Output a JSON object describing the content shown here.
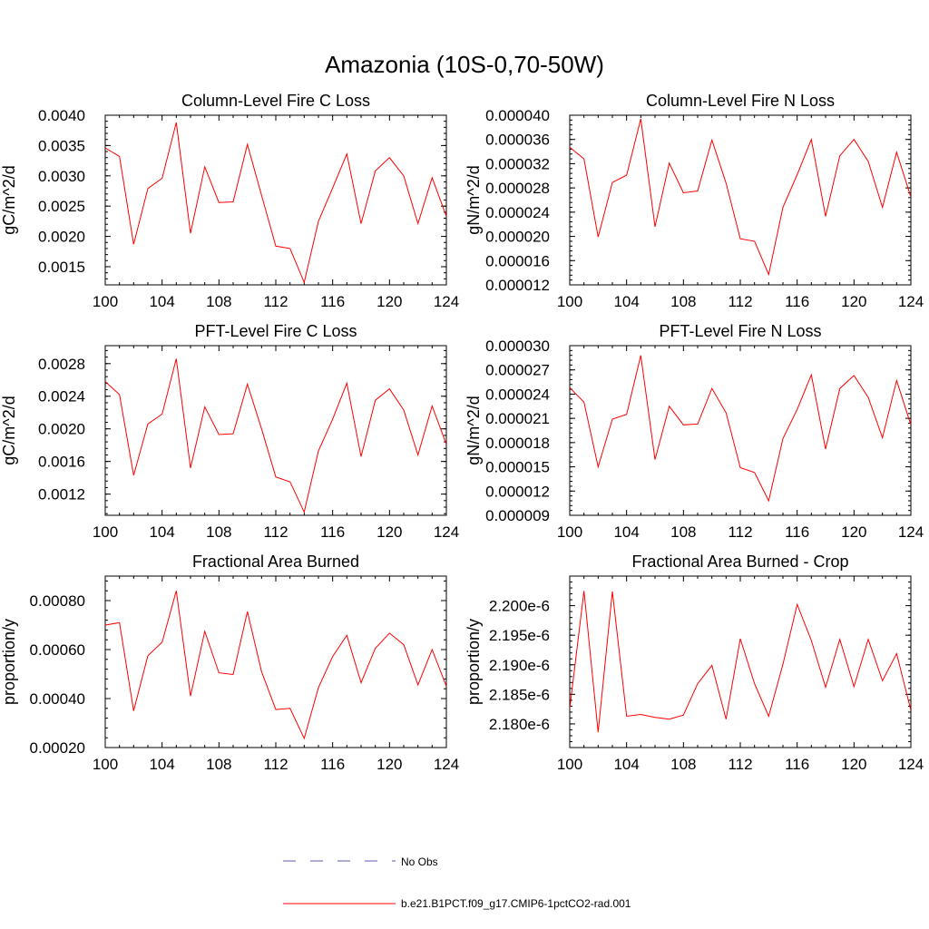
{
  "page": {
    "title": "Amazonia (10S-0,70-50W)"
  },
  "legend": {
    "obs_label": "No Obs",
    "obs_color": "#5a5aa8",
    "model_label": "b.e21.B1PCT.f09_g17.CMIP6-1pctCO2-rad.001",
    "model_color": "#ff0000"
  },
  "chart_data": [
    {
      "type": "line",
      "title": "Column-Level Fire C Loss",
      "ylabel": "gC/m^2/d",
      "xlim": [
        100,
        124
      ],
      "ylim": [
        0.0012,
        0.004
      ],
      "x_ticks": [
        "100",
        "104",
        "108",
        "112",
        "116",
        "120",
        "124"
      ],
      "y_ticks": [
        {
          "value": 0.0015,
          "label": "0.0015"
        },
        {
          "value": 0.002,
          "label": "0.0020"
        },
        {
          "value": 0.0025,
          "label": "0.0025"
        },
        {
          "value": 0.003,
          "label": "0.0030"
        },
        {
          "value": 0.0035,
          "label": "0.0035"
        },
        {
          "value": 0.004,
          "label": "0.0040"
        }
      ],
      "series": [
        {
          "color": "#ff0000",
          "x": [
            100,
            101,
            102,
            103,
            104,
            105,
            106,
            107,
            108,
            109,
            110,
            111,
            112,
            113,
            114,
            115,
            116,
            117,
            118,
            119,
            120,
            121,
            122,
            123,
            124
          ],
          "y": [
            0.00346,
            0.00332,
            0.00187,
            0.00279,
            0.00296,
            0.00388,
            0.00205,
            0.00315,
            0.00256,
            0.00257,
            0.00352,
            0.00268,
            0.00184,
            0.0018,
            0.00124,
            0.00225,
            0.0028,
            0.00336,
            0.00221,
            0.00308,
            0.0033,
            0.003,
            0.00221,
            0.00297,
            0.00233
          ]
        }
      ]
    },
    {
      "type": "line",
      "title": "Column-Level Fire N Loss",
      "ylabel": "gN/m^2/d",
      "xlim": [
        100,
        124
      ],
      "ylim": [
        1.2e-05,
        4e-05
      ],
      "x_ticks": [
        "100",
        "104",
        "108",
        "112",
        "116",
        "120",
        "124"
      ],
      "y_ticks": [
        {
          "value": 1.2e-05,
          "label": "0.000012"
        },
        {
          "value": 1.6e-05,
          "label": "0.000016"
        },
        {
          "value": 2e-05,
          "label": "0.000020"
        },
        {
          "value": 2.4e-05,
          "label": "0.000024"
        },
        {
          "value": 2.8e-05,
          "label": "0.000028"
        },
        {
          "value": 3.2e-05,
          "label": "0.000032"
        },
        {
          "value": 3.6e-05,
          "label": "0.000036"
        },
        {
          "value": 4e-05,
          "label": "0.000040"
        }
      ],
      "series": [
        {
          "color": "#ff0000",
          "x": [
            100,
            101,
            102,
            103,
            104,
            105,
            106,
            107,
            108,
            109,
            110,
            111,
            112,
            113,
            114,
            115,
            116,
            117,
            118,
            119,
            120,
            121,
            122,
            123,
            124
          ],
          "y": [
            3.47e-05,
            3.28e-05,
            1.99e-05,
            2.89e-05,
            3.01e-05,
            3.94e-05,
            2.16e-05,
            3.21e-05,
            2.72e-05,
            2.75e-05,
            3.59e-05,
            2.88e-05,
            1.96e-05,
            1.92e-05,
            1.37e-05,
            2.48e-05,
            3.02e-05,
            3.6e-05,
            2.33e-05,
            3.33e-05,
            3.6e-05,
            3.24e-05,
            2.48e-05,
            3.39e-05,
            2.65e-05
          ]
        }
      ]
    },
    {
      "type": "line",
      "title": "PFT-Level Fire C Loss",
      "ylabel": "gC/m^2/d",
      "xlim": [
        100,
        124
      ],
      "ylim": [
        0.00094,
        0.00302
      ],
      "x_ticks": [
        "100",
        "104",
        "108",
        "112",
        "116",
        "120",
        "124"
      ],
      "y_ticks": [
        {
          "value": 0.0012,
          "label": "0.0012"
        },
        {
          "value": 0.0016,
          "label": "0.0016"
        },
        {
          "value": 0.002,
          "label": "0.0020"
        },
        {
          "value": 0.0024,
          "label": "0.0024"
        },
        {
          "value": 0.0028,
          "label": "0.0028"
        }
      ],
      "series": [
        {
          "color": "#ff0000",
          "x": [
            100,
            101,
            102,
            103,
            104,
            105,
            106,
            107,
            108,
            109,
            110,
            111,
            112,
            113,
            114,
            115,
            116,
            117,
            118,
            119,
            120,
            121,
            122,
            123,
            124
          ],
          "y": [
            0.00258,
            0.00242,
            0.00143,
            0.00206,
            0.00218,
            0.00286,
            0.00152,
            0.00227,
            0.00193,
            0.00194,
            0.00255,
            0.002,
            0.00141,
            0.00135,
            0.00098,
            0.00173,
            0.00212,
            0.00256,
            0.00166,
            0.00235,
            0.00249,
            0.00223,
            0.00168,
            0.00228,
            0.00181
          ]
        }
      ]
    },
    {
      "type": "line",
      "title": "PFT-Level Fire N Loss",
      "ylabel": "gN/m^2/d",
      "xlim": [
        100,
        124
      ],
      "ylim": [
        9e-06,
        3e-05
      ],
      "x_ticks": [
        "100",
        "104",
        "108",
        "112",
        "116",
        "120",
        "124"
      ],
      "y_ticks": [
        {
          "value": 9e-06,
          "label": "0.000009"
        },
        {
          "value": 1.2e-05,
          "label": "0.000012"
        },
        {
          "value": 1.5e-05,
          "label": "0.000015"
        },
        {
          "value": 1.8e-05,
          "label": "0.000018"
        },
        {
          "value": 2.1e-05,
          "label": "0.000021"
        },
        {
          "value": 2.4e-05,
          "label": "0.000024"
        },
        {
          "value": 2.7e-05,
          "label": "0.000027"
        },
        {
          "value": 3e-05,
          "label": "0.000030"
        }
      ],
      "series": [
        {
          "color": "#ff0000",
          "x": [
            100,
            101,
            102,
            103,
            104,
            105,
            106,
            107,
            108,
            109,
            110,
            111,
            112,
            113,
            114,
            115,
            116,
            117,
            118,
            119,
            120,
            121,
            122,
            123,
            124
          ],
          "y": [
            2.48e-05,
            2.3e-05,
            1.5e-05,
            2.09e-05,
            2.15e-05,
            2.88e-05,
            1.59e-05,
            2.25e-05,
            2.02e-05,
            2.03e-05,
            2.47e-05,
            2.17e-05,
            1.49e-05,
            1.43e-05,
            1.08e-05,
            1.85e-05,
            2.21e-05,
            2.64e-05,
            1.72e-05,
            2.47e-05,
            2.63e-05,
            2.36e-05,
            1.86e-05,
            2.57e-05,
            2.02e-05
          ]
        }
      ]
    },
    {
      "type": "line",
      "title": "Fractional Area Burned",
      "ylabel": "proportion/y",
      "xlim": [
        100,
        124
      ],
      "ylim": [
        0.0002,
        0.0009
      ],
      "x_ticks": [
        "100",
        "104",
        "108",
        "112",
        "116",
        "120",
        "124"
      ],
      "y_ticks": [
        {
          "value": 0.0002,
          "label": "0.00020"
        },
        {
          "value": 0.0004,
          "label": "0.00040"
        },
        {
          "value": 0.0006,
          "label": "0.00060"
        },
        {
          "value": 0.0008,
          "label": "0.00080"
        }
      ],
      "series": [
        {
          "color": "#ff0000",
          "x": [
            100,
            101,
            102,
            103,
            104,
            105,
            106,
            107,
            108,
            109,
            110,
            111,
            112,
            113,
            114,
            115,
            116,
            117,
            118,
            119,
            120,
            121,
            122,
            123,
            124
          ],
          "y": [
            0.0007,
            0.00071,
            0.00035,
            0.000575,
            0.00063,
            0.00084,
            0.00041,
            0.000675,
            0.000505,
            0.000498,
            0.000755,
            0.00051,
            0.000355,
            0.00036,
            0.000237,
            0.000445,
            0.000572,
            0.000658,
            0.000465,
            0.000605,
            0.000667,
            0.00062,
            0.000456,
            0.0006,
            0.00045
          ]
        }
      ]
    },
    {
      "type": "line",
      "title": "Fractional Area Burned - Crop",
      "ylabel": "proportion/y",
      "xlim": [
        100,
        124
      ],
      "ylim": [
        2.176e-06,
        2.205e-06
      ],
      "x_ticks": [
        "100",
        "104",
        "108",
        "112",
        "116",
        "120",
        "124"
      ],
      "y_ticks": [
        {
          "value": 2.18e-06,
          "label": "2.180e-6"
        },
        {
          "value": 2.185e-06,
          "label": "2.185e-6"
        },
        {
          "value": 2.19e-06,
          "label": "2.190e-6"
        },
        {
          "value": 2.195e-06,
          "label": "2.195e-6"
        },
        {
          "value": 2.2e-06,
          "label": "2.200e-6"
        }
      ],
      "series": [
        {
          "color": "#ff0000",
          "x": [
            100,
            101,
            102,
            103,
            104,
            105,
            106,
            107,
            108,
            109,
            110,
            111,
            112,
            113,
            114,
            115,
            116,
            117,
            118,
            119,
            120,
            121,
            122,
            123,
            124
          ],
          "y": [
            2.1826e-06,
            2.2025e-06,
            2.1786e-06,
            2.2024e-06,
            2.1813e-06,
            2.1816e-06,
            2.1811e-06,
            2.1808e-06,
            2.1815e-06,
            2.1868e-06,
            2.1899e-06,
            2.1808e-06,
            2.1944e-06,
            2.1868e-06,
            2.1813e-06,
            2.1901e-06,
            2.2002e-06,
            2.1941e-06,
            2.1862e-06,
            2.1943e-06,
            2.1863e-06,
            2.1943e-06,
            2.1873e-06,
            2.1919e-06,
            2.1823e-06
          ]
        }
      ]
    }
  ]
}
